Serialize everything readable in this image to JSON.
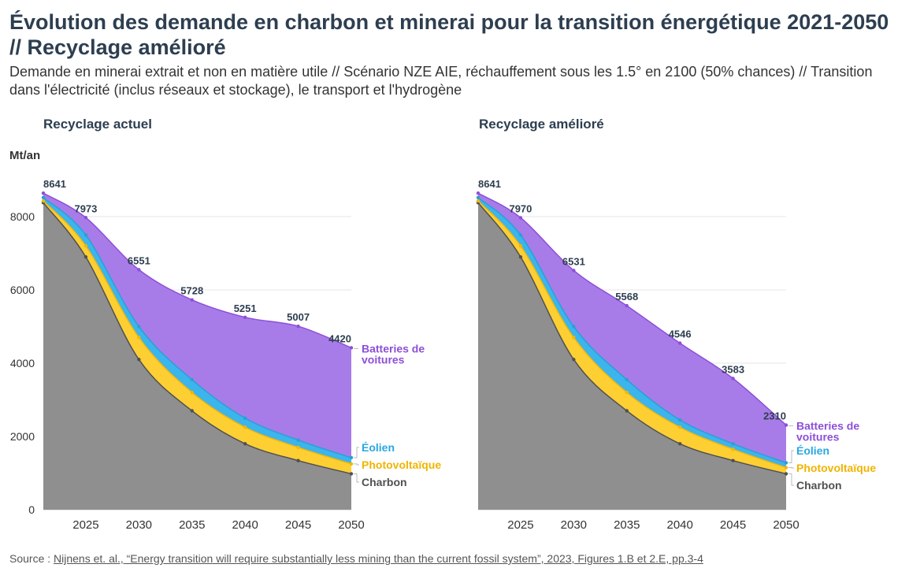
{
  "title": "Évolution des demande en charbon et minerai pour la transition énergétique 2021-2050 // Recyclage amélioré",
  "subtitle": "Demande en minerai extrait et non en matière utile // Scénario NZE AIE, réchauffement sous les 1.5° en 2100 (50% chances) // Transition dans l'électricité (inclus réseaux et stockage), le transport et l'hydrogène",
  "unit": "Mt/an",
  "source_prefix": "Source : ",
  "source_link": "Nijnens et. al., “Energy transition will require substantially less mining than the current fossil system”, 2023, Figures 1.B et 2.E, pp.3-4",
  "colors": {
    "charbon": "#8f8f8f",
    "charbon_line": "#505050",
    "photovoltaique": "#fecf33",
    "eolien": "#3cb4ec",
    "batteries": "#a87ce8",
    "batteries_line": "#8d4fd9",
    "grid": "#e6e6e6"
  },
  "chart_data": [
    {
      "type": "area",
      "title": "Recyclage actuel",
      "ylabel": "Mt/an",
      "x": [
        2021,
        2025,
        2030,
        2035,
        2040,
        2045,
        2050
      ],
      "xticks": [
        "2025",
        "2030",
        "2035",
        "2040",
        "2045",
        "2050"
      ],
      "yticks": [
        "0",
        "2000",
        "4000",
        "6000",
        "8000"
      ],
      "ylim": [
        0,
        9000
      ],
      "grid": true,
      "stacked": true,
      "series": [
        {
          "name": "Charbon",
          "cumulative": [
            8380,
            6900,
            4100,
            2700,
            1800,
            1340,
            980
          ]
        },
        {
          "name": "Photovoltaïque",
          "cumulative": [
            8430,
            7200,
            4700,
            3200,
            2250,
            1700,
            1250
          ]
        },
        {
          "name": "Éolien",
          "cumulative": [
            8520,
            7500,
            5000,
            3550,
            2500,
            1900,
            1420
          ]
        },
        {
          "name": "Batteries de voitures",
          "cumulative": [
            8641,
            7973,
            6551,
            5728,
            5251,
            5007,
            4420
          ]
        }
      ],
      "total_labels": [
        "8641",
        "7973",
        "6551",
        "5728",
        "5251",
        "5007",
        "4420"
      ],
      "end_labels": [
        "Batteries de",
        "voitures",
        "Éolien",
        "Photovoltaïque",
        "Charbon"
      ]
    },
    {
      "type": "area",
      "title": "Recyclage amélioré",
      "x": [
        2021,
        2025,
        2030,
        2035,
        2040,
        2045,
        2050
      ],
      "xticks": [
        "2025",
        "2030",
        "2035",
        "2040",
        "2045",
        "2050"
      ],
      "ylim": [
        0,
        9000
      ],
      "grid": true,
      "stacked": true,
      "series": [
        {
          "name": "Charbon",
          "cumulative": [
            8380,
            6900,
            4100,
            2700,
            1800,
            1340,
            980
          ]
        },
        {
          "name": "Photovoltaïque",
          "cumulative": [
            8430,
            7200,
            4700,
            3200,
            2250,
            1650,
            1150
          ]
        },
        {
          "name": "Éolien",
          "cumulative": [
            8520,
            7500,
            5000,
            3550,
            2450,
            1800,
            1280
          ]
        },
        {
          "name": "Batteries de voitures",
          "cumulative": [
            8641,
            7970,
            6531,
            5568,
            4546,
            3583,
            2310
          ]
        }
      ],
      "total_labels": [
        "8641",
        "7970",
        "6531",
        "5568",
        "4546",
        "3583",
        "2310"
      ],
      "end_labels": [
        "Batteries de",
        "voitures",
        "Éolien",
        "Photovoltaïque",
        "Charbon"
      ]
    }
  ]
}
